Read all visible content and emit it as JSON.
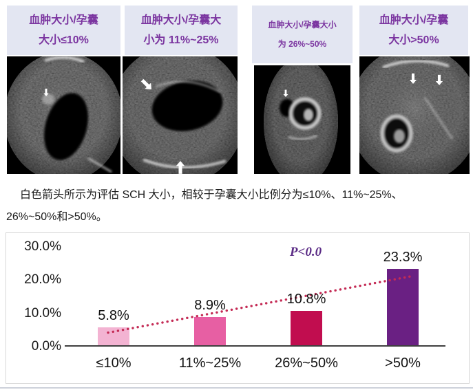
{
  "panels": [
    {
      "caption_line1": "血肿大小/孕囊",
      "caption_line2": "大小≤10%"
    },
    {
      "caption_line1": "血肿大小/孕囊大",
      "caption_line2": "小为 11%~25%"
    },
    {
      "caption_line1": "血肿大小/孕囊大小",
      "caption_line2": "为 26%~50%"
    },
    {
      "caption_line1": "血肿大小/孕囊",
      "caption_line2": "大小>50%"
    }
  ],
  "description": {
    "line1": "白色箭头所示为评估 SCH 大小，相较于孕囊大小比例分为≤10%、11%~25%、",
    "line2": "26%~50%和>50%。"
  },
  "chart_data": {
    "type": "bar",
    "categories": [
      "≤10%",
      "11%~25%",
      "26%~50%",
      ">50%"
    ],
    "values": [
      5.8,
      8.9,
      10.8,
      23.3
    ],
    "data_labels": [
      "5.8%",
      "8.9%",
      "10.8%",
      "23.3%"
    ],
    "y_ticks": [
      "30.0%",
      "20.0%",
      "10.0%",
      "0.0%"
    ],
    "y_tick_values": [
      30,
      20,
      10,
      0
    ],
    "ylim": [
      0,
      30
    ],
    "annotation": "P<0.0",
    "trendline": "dotted rising line from first bar to last bar",
    "bar_colors": [
      "#F3B3D2",
      "#E75FA3",
      "#C10D4F",
      "#6A2083"
    ],
    "trendline_color": "#C42B55",
    "annotation_color": "#5B2C86",
    "grid": false,
    "legend": false,
    "title": "",
    "xlabel": "",
    "ylabel": ""
  },
  "colors": {
    "caption_bg": "#E3E6F2",
    "caption_text": "#7B35A0",
    "axis": "#3F3F3F",
    "description_text": "#1B1B1B"
  }
}
